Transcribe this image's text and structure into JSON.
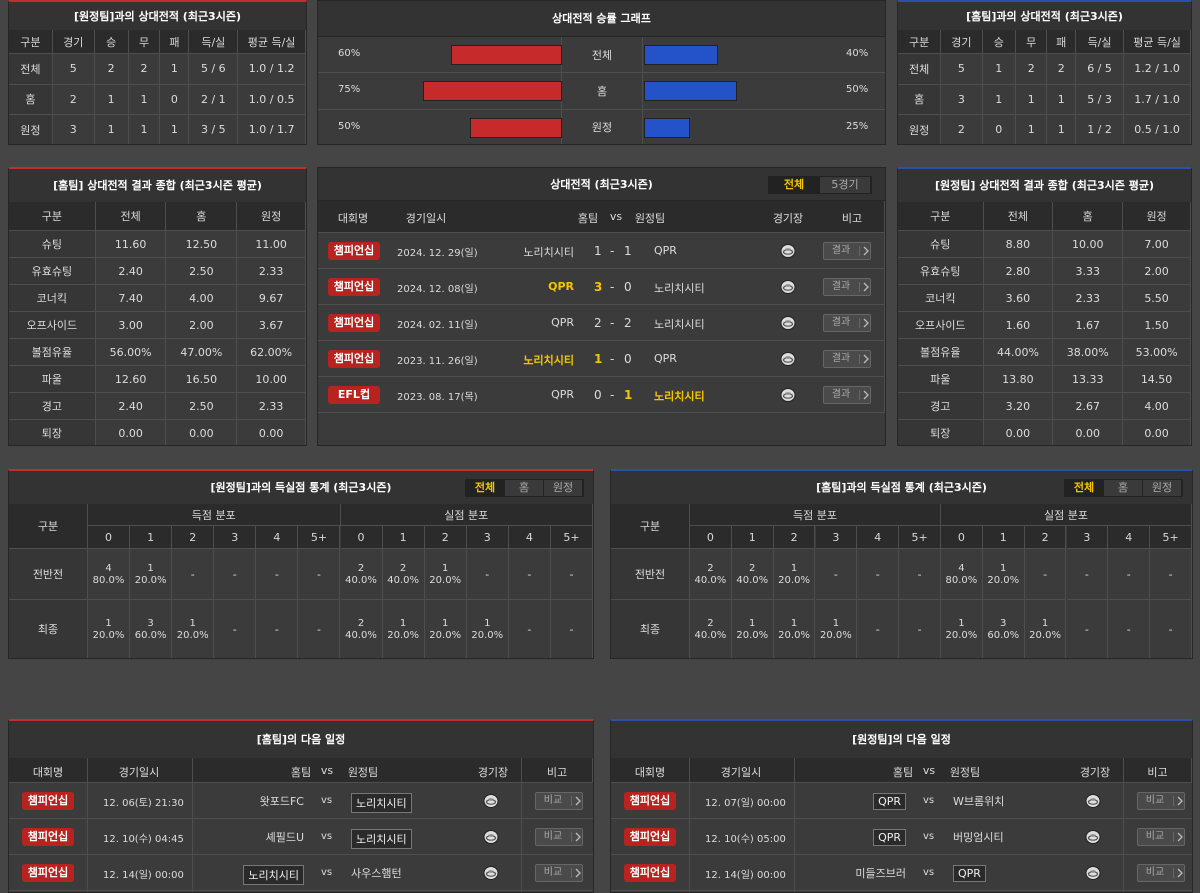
{
  "h2h_away": {
    "title": "[원정팀]과의 상대전적 (최근3시즌)",
    "columns": [
      "구분",
      "경기",
      "승",
      "무",
      "패",
      "득/실",
      "평균 득/실"
    ],
    "rows": [
      [
        "전체",
        "5",
        "2",
        "2",
        "1",
        "5 / 6",
        "1.0 / 1.2"
      ],
      [
        "홈",
        "2",
        "1",
        "1",
        "0",
        "2 / 1",
        "1.0 / 0.5"
      ],
      [
        "원정",
        "3",
        "1",
        "1",
        "1",
        "3 / 5",
        "1.0 / 1.7"
      ]
    ]
  },
  "win_graph": {
    "title": "상대전적 승률 그래프",
    "categories": [
      "전체",
      "홈",
      "원정"
    ],
    "xlim": [
      0,
      100
    ],
    "left": {
      "color": "#c62a2a",
      "values": [
        60,
        75,
        50
      ],
      "value_labels": [
        "60%",
        "75%",
        "50%"
      ]
    },
    "right": {
      "color": "#2453c9",
      "values": [
        40,
        50,
        25
      ],
      "value_labels": [
        "40%",
        "50%",
        "25%"
      ]
    }
  },
  "h2h_home": {
    "title": "[홈팀]과의 상대전적 (최근3시즌)",
    "columns": [
      "구분",
      "경기",
      "승",
      "무",
      "패",
      "득/실",
      "평균 득/실"
    ],
    "rows": [
      [
        "전체",
        "5",
        "1",
        "2",
        "2",
        "6 / 5",
        "1.2 / 1.0"
      ],
      [
        "홈",
        "3",
        "1",
        "1",
        "1",
        "5 / 3",
        "1.7 / 1.0"
      ],
      [
        "원정",
        "2",
        "0",
        "1",
        "1",
        "1 / 2",
        "0.5 / 1.0"
      ]
    ]
  },
  "stats_home": {
    "title": "[홈팀] 상대전적 결과 종합 (최근3시즌 평균)",
    "columns": [
      "구분",
      "전체",
      "홈",
      "원정"
    ],
    "rows": [
      [
        "슈팅",
        "11.60",
        "12.50",
        "11.00"
      ],
      [
        "유효슈팅",
        "2.40",
        "2.50",
        "2.33"
      ],
      [
        "코너킥",
        "7.40",
        "4.00",
        "9.67"
      ],
      [
        "오프사이드",
        "3.00",
        "2.00",
        "3.67"
      ],
      [
        "볼점유율",
        "56.00%",
        "47.00%",
        "62.00%"
      ],
      [
        "파울",
        "12.60",
        "16.50",
        "10.00"
      ],
      [
        "경고",
        "2.40",
        "2.50",
        "2.33"
      ],
      [
        "퇴장",
        "0.00",
        "0.00",
        "0.00"
      ]
    ]
  },
  "matches": {
    "title": "상대전적 (최근3시즌)",
    "tabs": [
      "전체",
      "5경기"
    ],
    "columns": [
      "대회명",
      "경기일시",
      "홈팀",
      "vs",
      "원정팀",
      "경기장",
      "비고"
    ],
    "separator": "-",
    "button": "결과",
    "rows": [
      {
        "league": "챔피언십",
        "date": "2024. 12. 29(일)",
        "home": "노리치시티",
        "home_score": 1,
        "away_score": 1,
        "away": "QPR"
      },
      {
        "league": "챔피언십",
        "date": "2024. 12. 08(일)",
        "home": "QPR",
        "home_score": 3,
        "away_score": 0,
        "away": "노리치시티"
      },
      {
        "league": "챔피언십",
        "date": "2024. 02. 11(일)",
        "home": "QPR",
        "home_score": 2,
        "away_score": 2,
        "away": "노리치시티"
      },
      {
        "league": "챔피언십",
        "date": "2023. 11. 26(일)",
        "home": "노리치시티",
        "home_score": 1,
        "away_score": 0,
        "away": "QPR"
      },
      {
        "league": "EFL컵",
        "date": "2023. 08. 17(목)",
        "home": "QPR",
        "home_score": 0,
        "away_score": 1,
        "away": "노리치시티"
      }
    ]
  },
  "stats_away": {
    "title": "[원정팀] 상대전적 결과 종합 (최근3시즌 평균)",
    "columns": [
      "구분",
      "전체",
      "홈",
      "원정"
    ],
    "rows": [
      [
        "슈팅",
        "8.80",
        "10.00",
        "7.00"
      ],
      [
        "유효슈팅",
        "2.80",
        "3.33",
        "2.00"
      ],
      [
        "코너킥",
        "3.60",
        "2.33",
        "5.50"
      ],
      [
        "오프사이드",
        "1.60",
        "1.67",
        "1.50"
      ],
      [
        "볼점유율",
        "44.00%",
        "38.00%",
        "53.00%"
      ],
      [
        "파울",
        "13.80",
        "13.33",
        "14.50"
      ],
      [
        "경고",
        "3.20",
        "2.67",
        "4.00"
      ],
      [
        "퇴장",
        "0.00",
        "0.00",
        "0.00"
      ]
    ]
  },
  "goals_away": {
    "title": "[원정팀]과의 득실점 통계 (최근3시즌)",
    "tabs": [
      "전체",
      "홈",
      "원정"
    ],
    "corner": "구분",
    "groups": [
      "득점 분포",
      "실점 분포"
    ],
    "bins": [
      "0",
      "1",
      "2",
      "3",
      "4",
      "5+"
    ],
    "rows": [
      {
        "label": "전반전",
        "scored": [
          [
            "4",
            "80.0%"
          ],
          [
            "1",
            "20.0%"
          ],
          "-",
          "-",
          "-",
          "-"
        ],
        "conceded": [
          [
            "2",
            "40.0%"
          ],
          [
            "2",
            "40.0%"
          ],
          [
            "1",
            "20.0%"
          ],
          "-",
          "-",
          "-"
        ]
      },
      {
        "label": "최종",
        "scored": [
          [
            "1",
            "20.0%"
          ],
          [
            "3",
            "60.0%"
          ],
          [
            "1",
            "20.0%"
          ],
          "-",
          "-",
          "-"
        ],
        "conceded": [
          [
            "2",
            "40.0%"
          ],
          [
            "1",
            "20.0%"
          ],
          [
            "1",
            "20.0%"
          ],
          [
            "1",
            "20.0%"
          ],
          "-",
          "-"
        ]
      }
    ]
  },
  "goals_home": {
    "title": "[홈팀]과의 득실점 통계 (최근3시즌)",
    "tabs": [
      "전체",
      "홈",
      "원정"
    ],
    "corner": "구분",
    "groups": [
      "득점 분포",
      "실점 분포"
    ],
    "bins": [
      "0",
      "1",
      "2",
      "3",
      "4",
      "5+"
    ],
    "rows": [
      {
        "label": "전반전",
        "scored": [
          [
            "2",
            "40.0%"
          ],
          [
            "2",
            "40.0%"
          ],
          [
            "1",
            "20.0%"
          ],
          "-",
          "-",
          "-"
        ],
        "conceded": [
          [
            "4",
            "80.0%"
          ],
          [
            "1",
            "20.0%"
          ],
          "-",
          "-",
          "-",
          "-"
        ]
      },
      {
        "label": "최종",
        "scored": [
          [
            "2",
            "40.0%"
          ],
          [
            "1",
            "20.0%"
          ],
          [
            "1",
            "20.0%"
          ],
          [
            "1",
            "20.0%"
          ],
          "-",
          "-"
        ],
        "conceded": [
          [
            "1",
            "20.0%"
          ],
          [
            "3",
            "60.0%"
          ],
          [
            "1",
            "20.0%"
          ],
          "-",
          "-",
          "-"
        ]
      }
    ]
  },
  "schedule_home": {
    "title": "[홈팀]의 다음 일정",
    "columns": [
      "대회명",
      "경기일시",
      "홈팀",
      "vs",
      "원정팀",
      "경기장",
      "비고"
    ],
    "button": "비교",
    "rows": [
      {
        "league": "챔피언십",
        "date": "12. 06(토) 21:30",
        "home": "왓포드FC",
        "away": "노리치시티",
        "highlight": "away"
      },
      {
        "league": "챔피언십",
        "date": "12. 10(수) 04:45",
        "home": "셰필드U",
        "away": "노리치시티",
        "highlight": "away"
      },
      {
        "league": "챔피언십",
        "date": "12. 14(일) 00:00",
        "home": "노리치시티",
        "away": "사우스햄턴",
        "highlight": "home"
      }
    ]
  },
  "schedule_away": {
    "title": "[원정팀]의 다음 일정",
    "columns": [
      "대회명",
      "경기일시",
      "홈팀",
      "vs",
      "원정팀",
      "경기장",
      "비고"
    ],
    "button": "비교",
    "rows": [
      {
        "league": "챔피언십",
        "date": "12. 07(일) 00:00",
        "home": "QPR",
        "away": "W브롬위치",
        "highlight": "home"
      },
      {
        "league": "챔피언십",
        "date": "12. 10(수) 05:00",
        "home": "QPR",
        "away": "버밍엄시티",
        "highlight": "home"
      },
      {
        "league": "챔피언십",
        "date": "12. 14(일) 00:00",
        "home": "미들즈브러",
        "away": "QPR",
        "highlight": "away"
      }
    ]
  }
}
